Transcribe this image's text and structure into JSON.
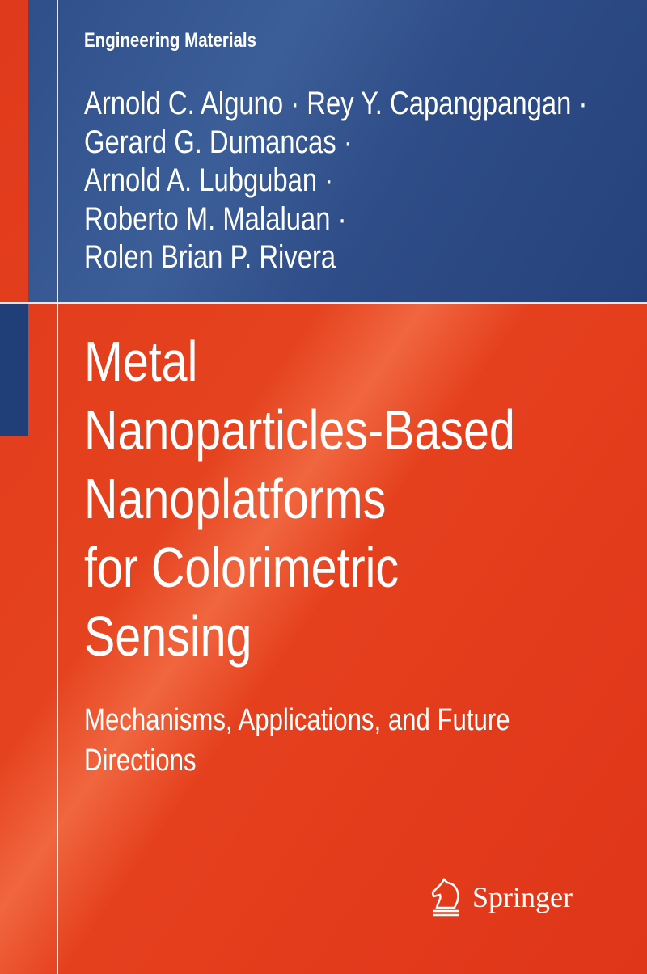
{
  "series": "Engineering Materials",
  "authors": [
    "Arnold C. Alguno · Rey Y. Capangpangan ·",
    "Gerard G. Dumancas ·",
    "Arnold A. Lubguban ·",
    "Roberto M. Malaluan ·",
    "Rolen Brian P. Rivera"
  ],
  "title_lines": [
    "Metal",
    "Nanoparticles-Based",
    "Nanoplatforms",
    "for Colorimetric",
    "Sensing"
  ],
  "subtitle_lines": [
    "Mechanisms, Applications, and Future",
    "Directions"
  ],
  "publisher": {
    "name": "Springer",
    "icon": "springer-horse-icon"
  },
  "colors": {
    "red": "#e2371b",
    "blue": "#2f4f8a"
  }
}
